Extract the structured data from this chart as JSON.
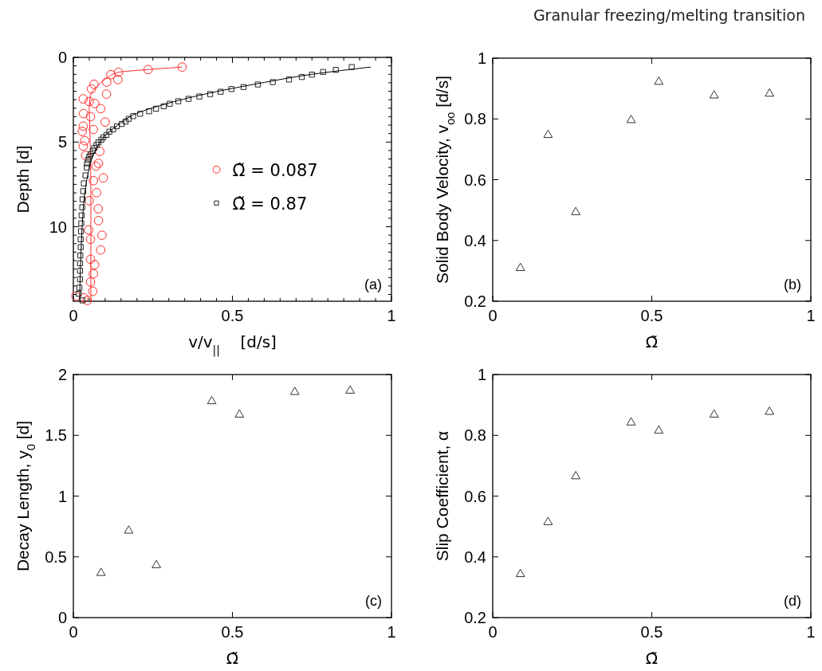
{
  "chart_data": [
    {
      "type": "scatter",
      "xlabel": "v/v$_{||}$    [d/s]",
      "ylabel": "Depth [d]",
      "annotations": [
        "(a)"
      ],
      "legend": "right",
      "xlim": [
        0,
        1
      ],
      "ylim": [
        14.4,
        0
      ],
      "xticks": [
        0,
        {
          "value": 0.05,
          "label": null
        },
        {
          "value": 0.1,
          "label": null
        },
        {
          "value": 0.15,
          "label": null
        },
        {
          "value": 0.2,
          "label": null
        },
        {
          "value": 0.25,
          "label": null
        },
        {
          "value": 0.3,
          "label": null
        },
        {
          "value": 0.35,
          "label": null
        },
        {
          "value": 0.4,
          "label": null
        },
        {
          "value": 0.45,
          "label": null
        },
        0.5,
        {
          "value": 0.55,
          "label": null
        },
        {
          "value": 0.6,
          "label": null
        },
        {
          "value": 0.65,
          "label": null
        },
        {
          "value": 0.7,
          "label": null
        },
        {
          "value": 0.75,
          "label": null
        },
        {
          "value": 0.8,
          "label": null
        },
        {
          "value": 0.85,
          "label": null
        },
        {
          "value": 0.9,
          "label": null
        },
        {
          "value": 0.95,
          "label": null
        },
        1
      ],
      "yticks": [
        0,
        {
          "value": 0.5,
          "label": null
        },
        {
          "value": 1,
          "label": null
        },
        {
          "value": 1.5,
          "label": null
        },
        {
          "value": 2,
          "label": null
        },
        {
          "value": 2.5,
          "label": null
        },
        {
          "value": 3,
          "label": null
        },
        {
          "value": 3.5,
          "label": null
        },
        {
          "value": 4,
          "label": null
        },
        {
          "value": 4.5,
          "label": null
        },
        5,
        {
          "value": 5.5,
          "label": null
        },
        {
          "value": 6,
          "label": null
        },
        {
          "value": 6.5,
          "label": null
        },
        {
          "value": 7,
          "label": null
        },
        {
          "value": 7.5,
          "label": null
        },
        {
          "value": 8,
          "label": null
        },
        {
          "value": 8.5,
          "label": null
        },
        {
          "value": 9,
          "label": null
        },
        {
          "value": 9.5,
          "label": null
        },
        10,
        {
          "value": 10.5,
          "label": null
        },
        {
          "value": 11,
          "label": null
        },
        {
          "value": 11.5,
          "label": null
        },
        {
          "value": 12,
          "label": null
        },
        {
          "value": 12.5,
          "label": null
        },
        {
          "value": 13,
          "label": null
        },
        {
          "value": 13.5,
          "label": null
        },
        {
          "value": 14,
          "label": null
        }
      ],
      "series": [
        {
          "name": "Ω̃ = 0.087",
          "type": "scatter",
          "marker": "circle",
          "color": "#ff2a2a",
          "x": [
            0.342,
            0.235,
            0.142,
            0.118,
            0.14,
            0.105,
            0.065,
            0.057,
            0.104,
            0.031,
            0.05,
            0.067,
            0.086,
            0.032,
            0.054,
            0.1,
            0.031,
            0.063,
            0.028,
            0.036,
            0.031,
            0.083,
            0.039,
            0.079,
            0.071,
            0.094,
            0.063,
            0.073,
            0.05,
            0.078,
            0.079,
            0.048,
            0.09,
            0.054,
            0.086,
            0.054,
            0.067,
            0.063,
            0.054,
            0.061,
            0.008,
            0.033,
            0.044
          ],
          "values": [
            0.57,
            0.72,
            0.88,
            1.02,
            1.31,
            1.46,
            1.59,
            1.86,
            2.17,
            2.45,
            2.61,
            2.72,
            3.03,
            3.32,
            3.5,
            3.82,
            4.06,
            4.26,
            4.37,
            4.92,
            5.24,
            5.55,
            5.79,
            6.26,
            6.42,
            7.12,
            7.28,
            7.99,
            8.46,
            8.94,
            9.64,
            10.19,
            10.5,
            10.74,
            11.37,
            11.92,
            12.24,
            12.78,
            13.26,
            13.81,
            14.1,
            14.2,
            14.35
          ]
        },
        {
          "type": "line",
          "color": "#ff2a2a",
          "x": [
            0.342,
            0.235,
            0.142,
            0.108,
            0.071,
            0.054,
            0.05,
            0.052,
            0.054,
            0.055,
            0.055
          ],
          "values": [
            0.57,
            0.72,
            0.88,
            1.2,
            1.78,
            2.25,
            3.03,
            4.14,
            6,
            8,
            14.4
          ]
        },
        {
          "name": "Ω̃ = 0.87",
          "type": "scatter",
          "marker": "square",
          "color": "#222222",
          "x": [
            0.875,
            0.825,
            0.785,
            0.75,
            0.718,
            0.678,
            0.627,
            0.58,
            0.535,
            0.497,
            0.463,
            0.43,
            0.396,
            0.362,
            0.33,
            0.303,
            0.284,
            0.26,
            0.238,
            0.21,
            0.188,
            0.174,
            0.164,
            0.152,
            0.137,
            0.125,
            0.113,
            0.104,
            0.094,
            0.088,
            0.079,
            0.073,
            0.066,
            0.061,
            0.054,
            0.05,
            0.046,
            0.043,
            0.042,
            0.038,
            0.033,
            0.031,
            0.029,
            0.028,
            0.026,
            0.025,
            0.024,
            0.023,
            0.023,
            0.022,
            0.021,
            0.021,
            0.021,
            0.019,
            0.017,
            0.029
          ],
          "values": [
            0.57,
            0.74,
            0.86,
            1.02,
            1.16,
            1.31,
            1.46,
            1.6,
            1.75,
            1.87,
            2.03,
            2.17,
            2.31,
            2.45,
            2.59,
            2.74,
            2.89,
            3.03,
            3.18,
            3.33,
            3.47,
            3.63,
            3.79,
            3.93,
            4.07,
            4.25,
            4.39,
            4.58,
            4.72,
            4.86,
            5.02,
            5.17,
            5.35,
            5.52,
            5.71,
            5.86,
            6.05,
            6.26,
            6.5,
            6.97,
            7.44,
            7.9,
            8.38,
            8.85,
            9.33,
            9.8,
            10.27,
            10.74,
            11.2,
            11.7,
            12.16,
            12.6,
            13.1,
            13.6,
            13.96,
            14.35
          ]
        },
        {
          "type": "line",
          "color": "#000000",
          "x": [
            0.935,
            0.75,
            0.58,
            0.43,
            0.3,
            0.2,
            0.14,
            0.1,
            0.078,
            0.062,
            0.047,
            0.036,
            0.029,
            0.025,
            0.022,
            0.02
          ],
          "values": [
            0.57,
            1.0,
            1.55,
            2.1,
            2.7,
            3.3,
            4.0,
            4.6,
            5.2,
            5.8,
            6.8,
            8,
            9.5,
            11,
            12.5,
            14.4
          ]
        }
      ]
    },
    {
      "type": "scatter",
      "title": "Granular freezing/melting transition",
      "xlabel": "Ω̃",
      "ylabel": "Solid Body Velocity, v$_{oo}$ [d/s]",
      "annotations": [
        "(b)"
      ],
      "marker": "triangle",
      "xlim": [
        0,
        1
      ],
      "ylim": [
        0.2,
        1
      ],
      "xticks": [
        0,
        0.5,
        1
      ],
      "yticks": [
        0.2,
        0.4,
        0.6,
        0.8,
        1
      ],
      "series": [
        {
          "color": "#333333",
          "x": [
            0.087,
            0.174,
            0.261,
            0.435,
            0.522,
            0.696,
            0.87
          ],
          "values": [
            0.309,
            0.747,
            0.493,
            0.796,
            0.922,
            0.877,
            0.883
          ]
        }
      ]
    },
    {
      "type": "scatter",
      "xlabel": "Ω̃",
      "ylabel": "Decay Length, y$_{0}$ [d]",
      "annotations": [
        "(c)"
      ],
      "marker": "triangle",
      "xlim": [
        0,
        1
      ],
      "ylim": [
        0,
        2
      ],
      "xticks": [
        0,
        0.5,
        1
      ],
      "yticks": [
        0,
        0.5,
        1,
        1.5,
        2
      ],
      "series": [
        {
          "color": "#333333",
          "x": [
            0.087,
            0.174,
            0.261,
            0.435,
            0.522,
            0.696,
            0.87
          ],
          "values": [
            0.367,
            0.715,
            0.431,
            1.78,
            1.67,
            1.856,
            1.867
          ]
        }
      ]
    },
    {
      "type": "scatter",
      "xlabel": "Ω̃",
      "ylabel": "Slip Coefficient, α",
      "annotations": [
        "(d)"
      ],
      "marker": "triangle",
      "xlim": [
        0,
        1
      ],
      "ylim": [
        0.2,
        1
      ],
      "xticks": [
        0,
        0.5,
        1
      ],
      "yticks": [
        0.2,
        0.4,
        0.6,
        0.8,
        1
      ],
      "series": [
        {
          "color": "#333333",
          "x": [
            0.087,
            0.174,
            0.261,
            0.435,
            0.522,
            0.696,
            0.87
          ],
          "values": [
            0.343,
            0.514,
            0.665,
            0.842,
            0.815,
            0.868,
            0.877
          ]
        }
      ]
    }
  ]
}
